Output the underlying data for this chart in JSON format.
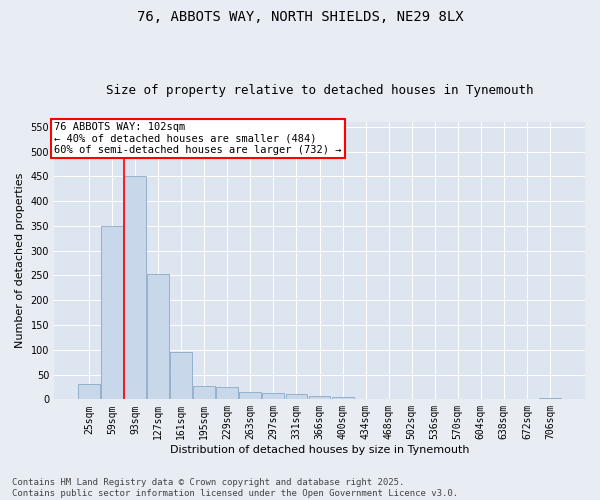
{
  "title_line1": "76, ABBOTS WAY, NORTH SHIELDS, NE29 8LX",
  "title_line2": "Size of property relative to detached houses in Tynemouth",
  "xlabel": "Distribution of detached houses by size in Tynemouth",
  "ylabel": "Number of detached properties",
  "categories": [
    "25sqm",
    "59sqm",
    "93sqm",
    "127sqm",
    "161sqm",
    "195sqm",
    "229sqm",
    "263sqm",
    "297sqm",
    "331sqm",
    "366sqm",
    "400sqm",
    "434sqm",
    "468sqm",
    "502sqm",
    "536sqm",
    "570sqm",
    "604sqm",
    "638sqm",
    "672sqm",
    "706sqm"
  ],
  "values": [
    30,
    350,
    450,
    252,
    95,
    26,
    24,
    14,
    12,
    10,
    6,
    4,
    0,
    0,
    0,
    0,
    0,
    0,
    0,
    0,
    3
  ],
  "bar_color": "#c8d8ea",
  "bar_edge_color": "#8aaac8",
  "red_line_x": 1.5,
  "ylim": [
    0,
    560
  ],
  "yticks": [
    0,
    50,
    100,
    150,
    200,
    250,
    300,
    350,
    400,
    450,
    500,
    550
  ],
  "annotation_line1": "76 ABBOTS WAY: 102sqm",
  "annotation_line2": "← 40% of detached houses are smaller (484)",
  "annotation_line3": "60% of semi-detached houses are larger (732) →",
  "footnote": "Contains HM Land Registry data © Crown copyright and database right 2025.\nContains public sector information licensed under the Open Government Licence v3.0.",
  "background_color": "#e8edf4",
  "plot_background_color": "#dce5f0",
  "grid_color": "#ffffff",
  "title_fontsize": 10,
  "subtitle_fontsize": 9,
  "label_fontsize": 8,
  "tick_fontsize": 7,
  "footnote_fontsize": 6.5
}
